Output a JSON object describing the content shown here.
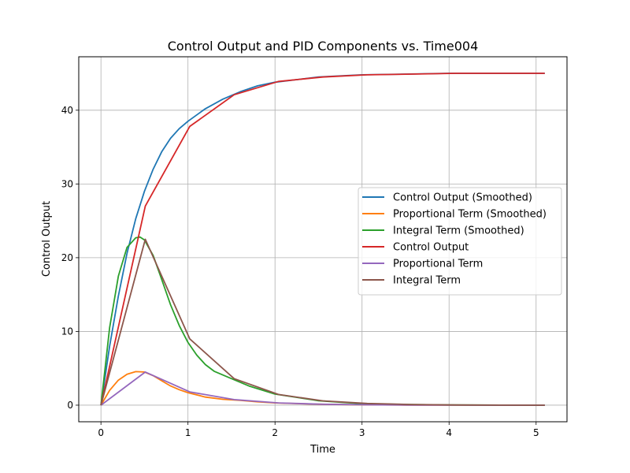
{
  "chart_data": {
    "type": "line",
    "title": "Control Output and PID Components vs. Time004",
    "xlabel": "Time",
    "ylabel": "Control Output",
    "xlim": [
      -0.255,
      5.355
    ],
    "ylim": [
      -2.25,
      47.25
    ],
    "xticks": [
      0,
      1,
      2,
      3,
      4,
      5
    ],
    "yticks": [
      0,
      10,
      20,
      30,
      40
    ],
    "grid": true,
    "legend_position": "center-right",
    "series": [
      {
        "name": "Control Output (Smoothed)",
        "color": "#1f77b4",
        "x": [
          0,
          0.1,
          0.2,
          0.3,
          0.4,
          0.5,
          0.6,
          0.7,
          0.8,
          0.9,
          1.0,
          1.2,
          1.4,
          1.6,
          1.8,
          2.0,
          2.5,
          3.0,
          3.5,
          4.0,
          4.5,
          5.1
        ],
        "y": [
          0,
          8.0,
          14.8,
          20.6,
          25.3,
          29.0,
          32.0,
          34.4,
          36.2,
          37.5,
          38.5,
          40.2,
          41.5,
          42.5,
          43.3,
          43.8,
          44.5,
          44.8,
          44.9,
          45.0,
          45.0,
          45.0
        ]
      },
      {
        "name": "Proportional Term (Smoothed)",
        "color": "#ff7f0e",
        "x": [
          0,
          0.1,
          0.2,
          0.3,
          0.4,
          0.5,
          0.6,
          0.7,
          0.8,
          0.9,
          1.0,
          1.2,
          1.4,
          1.6,
          1.8,
          2.0,
          2.5,
          3.0,
          3.5,
          4.0,
          4.5,
          5.1
        ],
        "y": [
          0,
          2.0,
          3.4,
          4.2,
          4.55,
          4.5,
          4.0,
          3.3,
          2.6,
          2.1,
          1.7,
          1.1,
          0.8,
          0.65,
          0.45,
          0.3,
          0.12,
          0.05,
          0.02,
          0.01,
          0,
          0
        ]
      },
      {
        "name": "Integral Term (Smoothed)",
        "color": "#2ca02c",
        "x": [
          0,
          0.1,
          0.2,
          0.3,
          0.4,
          0.45,
          0.5,
          0.6,
          0.7,
          0.8,
          0.9,
          1.0,
          1.1,
          1.2,
          1.3,
          1.5,
          1.7,
          2.0,
          2.5,
          3.0,
          3.5,
          4.0,
          5.1
        ],
        "y": [
          0,
          10.5,
          17.5,
          21.4,
          22.7,
          22.8,
          22.4,
          20.3,
          17.0,
          13.6,
          10.8,
          8.5,
          6.8,
          5.5,
          4.6,
          3.6,
          2.6,
          1.5,
          0.6,
          0.2,
          0.08,
          0.03,
          0
        ]
      },
      {
        "name": "Control Output",
        "color": "#d62728",
        "x": [
          0,
          0.51,
          1.02,
          1.53,
          2.04,
          2.55,
          3.06,
          3.57,
          4.08,
          4.59,
          5.1
        ],
        "y": [
          0,
          27.0,
          37.8,
          42.1,
          43.9,
          44.5,
          44.8,
          44.9,
          45.0,
          45.0,
          45.0
        ]
      },
      {
        "name": "Proportional Term",
        "color": "#9467bd",
        "x": [
          0,
          0.51,
          1.02,
          1.53,
          2.04,
          2.55,
          3.06,
          3.57,
          4.08,
          4.59,
          5.1
        ],
        "y": [
          0,
          4.5,
          1.8,
          0.75,
          0.3,
          0.12,
          0.05,
          0.02,
          0.01,
          0,
          0
        ]
      },
      {
        "name": "Integral Term",
        "color": "#8c564b",
        "x": [
          0,
          0.51,
          1.02,
          1.53,
          2.04,
          2.55,
          3.06,
          3.57,
          4.08,
          4.59,
          5.1
        ],
        "y": [
          0,
          22.5,
          9.0,
          3.6,
          1.45,
          0.58,
          0.23,
          0.09,
          0.04,
          0.01,
          0
        ]
      }
    ]
  }
}
